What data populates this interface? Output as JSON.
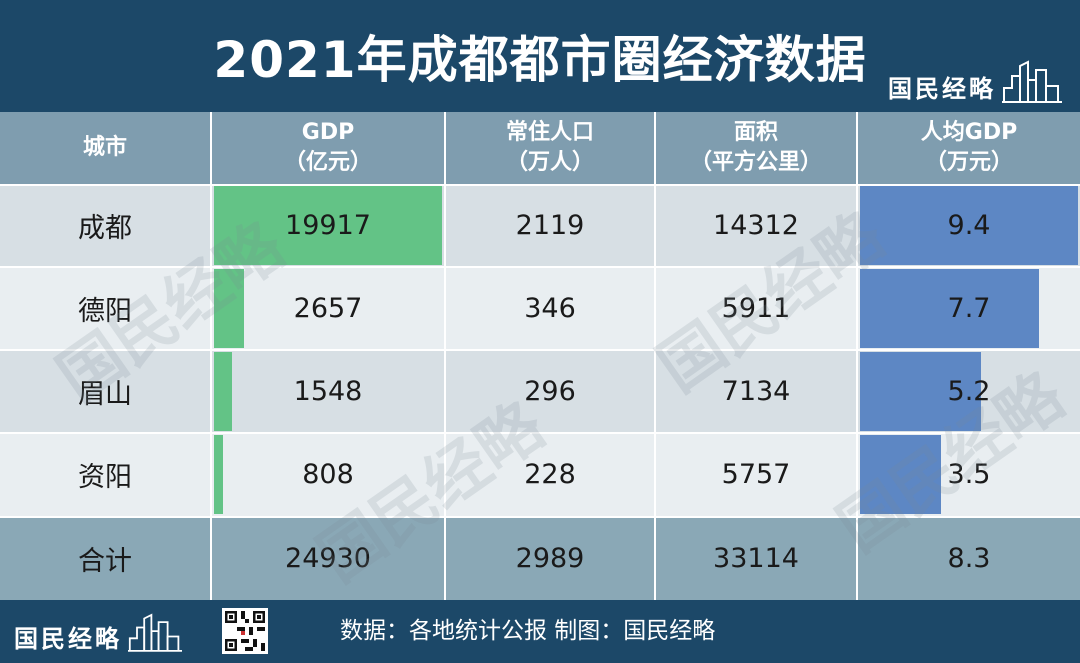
{
  "title": "2021年成都都市圈经济数据",
  "brand": {
    "name": "国民经略"
  },
  "colors": {
    "header_bg": "#1c4868",
    "gdp_bar": "#63c386",
    "gdp_per_capita_bar": "#5d87c4"
  },
  "chart_data": {
    "type": "table",
    "columns": [
      {
        "key": "city",
        "label": "城市",
        "unit": ""
      },
      {
        "key": "gdp",
        "label": "GDP",
        "unit": "（亿元）"
      },
      {
        "key": "population",
        "label": "常住人口",
        "unit": "（万人）"
      },
      {
        "key": "area",
        "label": "面积",
        "unit": "（平方公里）"
      },
      {
        "key": "gdp_per_capita",
        "label": "人均GDP",
        "unit": "（万元）"
      }
    ],
    "rows": [
      {
        "city": "成都",
        "gdp": "19917",
        "population": "2119",
        "area": "14312",
        "gdp_per_capita": "9.4"
      },
      {
        "city": "德阳",
        "gdp": "2657",
        "population": "346",
        "area": "5911",
        "gdp_per_capita": "7.7"
      },
      {
        "city": "眉山",
        "gdp": "1548",
        "population": "296",
        "area": "7134",
        "gdp_per_capita": "5.2"
      },
      {
        "city": "资阳",
        "gdp": "808",
        "population": "228",
        "area": "5757",
        "gdp_per_capita": "3.5"
      }
    ],
    "total": {
      "city": "合计",
      "gdp": "24930",
      "population": "2989",
      "area": "33114",
      "gdp_per_capita": "8.3"
    },
    "gdp_bar_max": 19917,
    "gdp_per_capita_bar_max": 9.4
  },
  "footer": {
    "source": "数据：各地统计公报 制图：国民经略"
  }
}
